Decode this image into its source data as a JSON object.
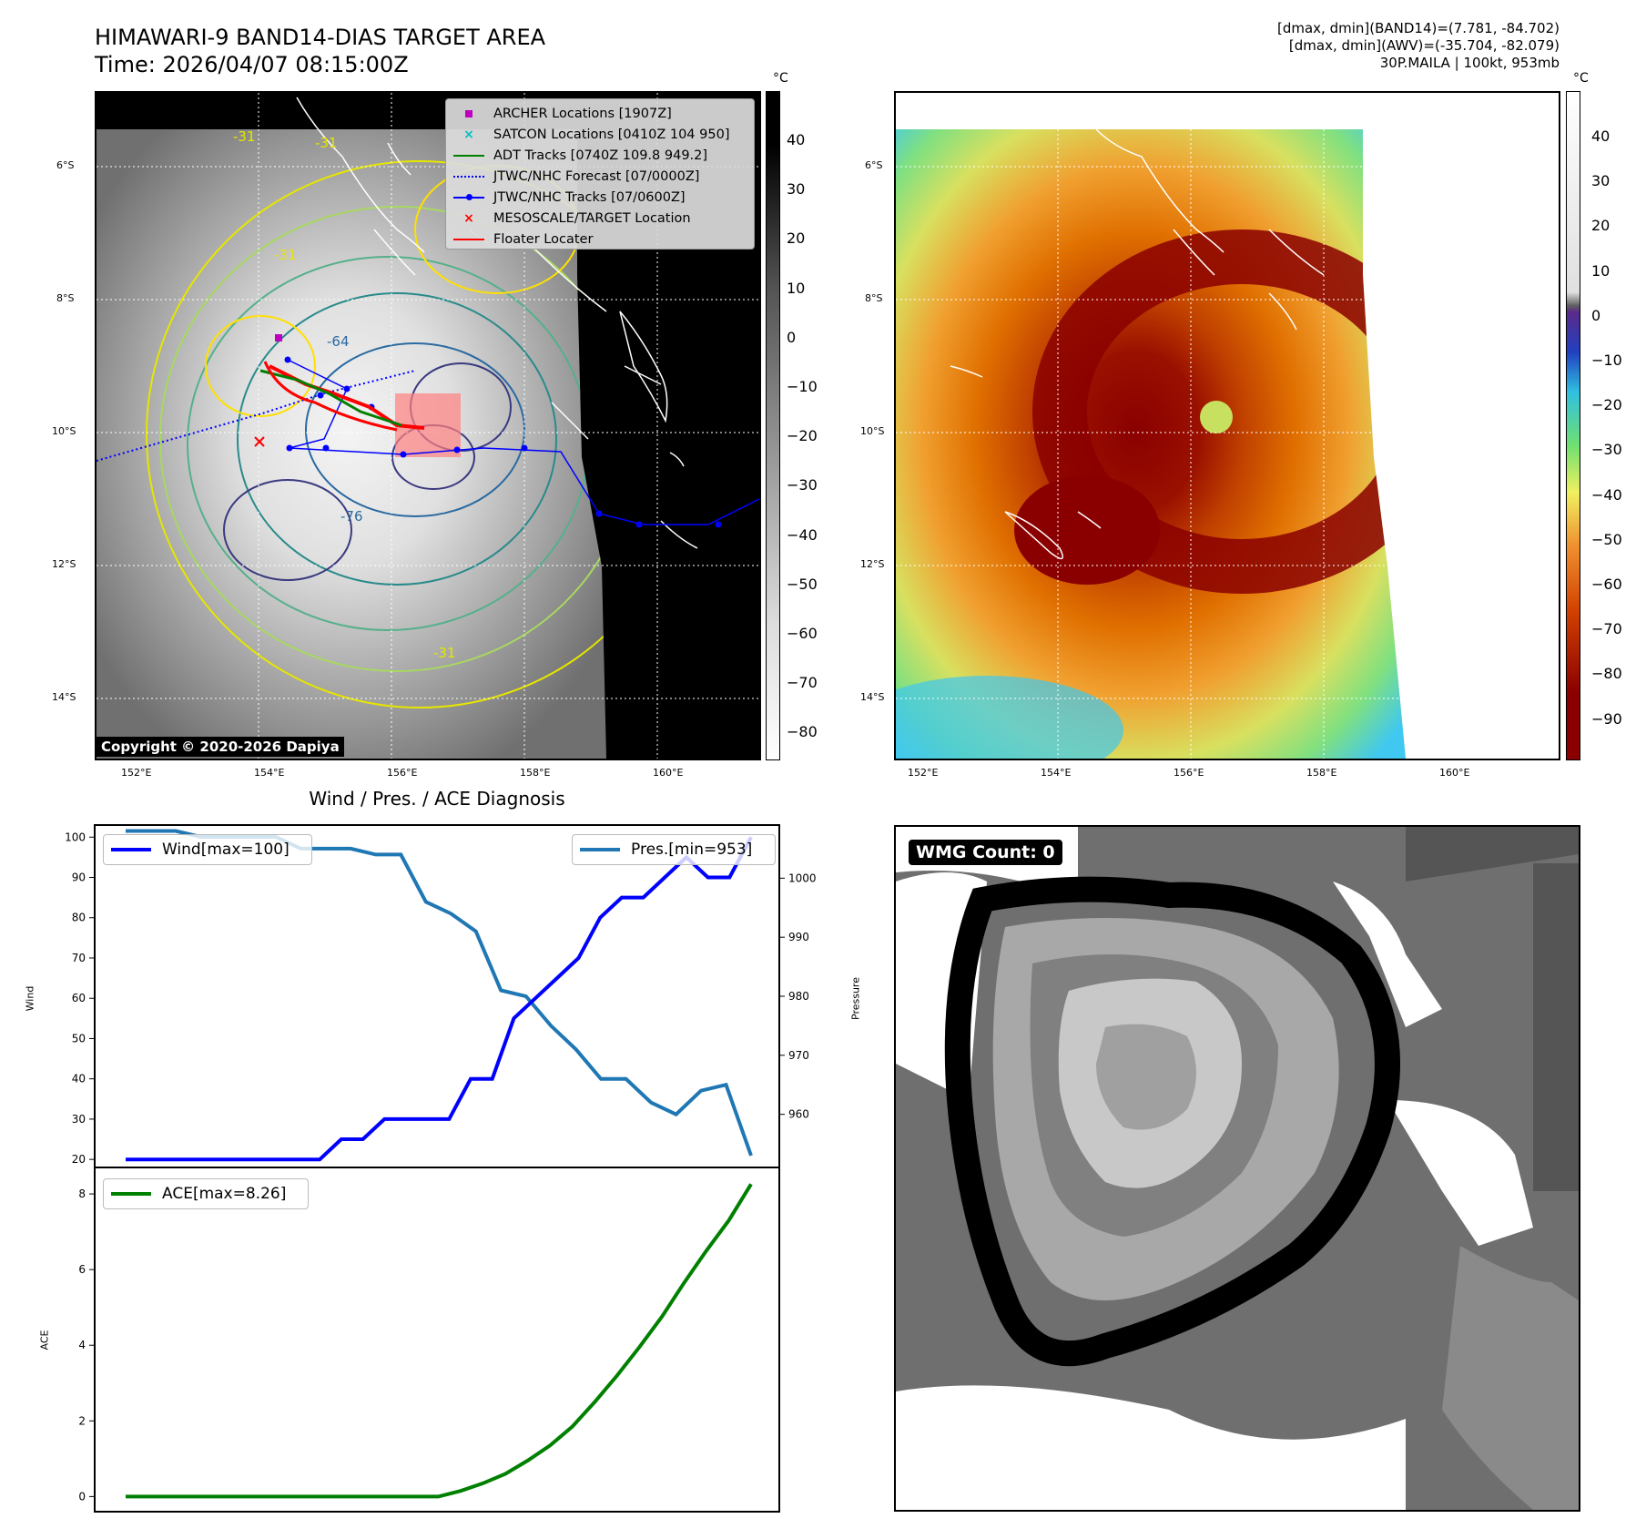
{
  "header": {
    "title_line1": "HIMAWARI-9 BAND14-DIAS TARGET AREA",
    "title_line2": "Time: 2026/04/07 08:15:00Z",
    "stats_line1": "[dmax, dmin](BAND14)=(7.781, -84.702)",
    "stats_line2": "[dmax, dmin](AWV)=(-35.704, -82.079)",
    "stats_line3": "30P.MAILA | 100kt, 953mb"
  },
  "map": {
    "lat_labels": [
      "6°S",
      "8°S",
      "10°S",
      "12°S",
      "14°S"
    ],
    "lon_labels": [
      "152°E",
      "154°E",
      "156°E",
      "158°E",
      "160°E"
    ],
    "contour_labels": [
      "-31",
      "-31",
      "-31",
      "-31",
      "-64",
      "-76",
      "-31"
    ],
    "copyright": "Copyright © 2020-2026 Dapiya"
  },
  "legend": {
    "items": [
      {
        "label": "ARCHER Locations [1907Z]",
        "color": "#c000c0",
        "marker": "square"
      },
      {
        "label": "SATCON Locations [0410Z 104 950]",
        "color": "#00c0c0",
        "marker": "x"
      },
      {
        "label": "ADT Tracks [0740Z 109.8 949.2]",
        "color": "#008000",
        "marker": "line"
      },
      {
        "label": "JTWC/NHC Forecast [07/0000Z]",
        "color": "#0000ff",
        "marker": "dotted"
      },
      {
        "label": "JTWC/NHC Tracks [07/0600Z]",
        "color": "#0000ff",
        "marker": "line-dot"
      },
      {
        "label": "MESOSCALE/TARGET Location",
        "color": "#ff0000",
        "marker": "x"
      },
      {
        "label": "Floater Locater",
        "color": "#ff0000",
        "marker": "line"
      }
    ]
  },
  "colorbar_gray": {
    "unit": "°C",
    "ticks": [
      "40",
      "30",
      "20",
      "10",
      "0",
      "−10",
      "−20",
      "−30",
      "−40",
      "−50",
      "−60",
      "−70",
      "−80"
    ]
  },
  "colorbar_color": {
    "unit": "°C",
    "ticks": [
      "40",
      "30",
      "20",
      "10",
      "0",
      "−10",
      "−20",
      "−30",
      "−40",
      "−50",
      "−60",
      "−70",
      "−80",
      "−90"
    ]
  },
  "wmg": {
    "count_label": "WMG Count: 0"
  },
  "diag": {
    "title": "Wind / Pres. / ACE Diagnosis",
    "wind_label": "Wind",
    "pressure_label": "Pressure",
    "ace_label": "ACE",
    "wind_legend": "Wind[max=100]",
    "pres_legend": "Pres.[min=953]",
    "ace_legend": "ACE[max=8.26]",
    "wind_ticks": [
      "100",
      "90",
      "80",
      "70",
      "60",
      "50",
      "40",
      "30",
      "20"
    ],
    "pres_ticks": [
      "1000",
      "990",
      "980",
      "970",
      "960"
    ],
    "ace_ticks": [
      "8",
      "6",
      "4",
      "2",
      "0"
    ]
  },
  "chart_data": [
    {
      "type": "line",
      "title": "Wind / Pres. / ACE Diagnosis",
      "series": [
        {
          "name": "Wind[max=100]",
          "axis": "Wind",
          "color": "#0000ff",
          "values": [
            20,
            20,
            20,
            20,
            20,
            20,
            20,
            20,
            20,
            20,
            25,
            25,
            30,
            30,
            30,
            30,
            40,
            40,
            55,
            60,
            65,
            70,
            80,
            85,
            85,
            90,
            95,
            90,
            90,
            100
          ]
        },
        {
          "name": "Pres.[min=953]",
          "axis": "Pressure",
          "color": "#1f77b4",
          "values": [
            1008,
            1008,
            1008,
            1007,
            1007,
            1007,
            1007,
            1005,
            1005,
            1005,
            1004,
            1004,
            996,
            994,
            991,
            981,
            980,
            975,
            971,
            966,
            966,
            962,
            960,
            964,
            965,
            953
          ]
        }
      ],
      "wind_ylim": [
        18,
        103
      ],
      "pres_ylim": [
        951,
        1009
      ]
    },
    {
      "type": "line",
      "series": [
        {
          "name": "ACE[max=8.26]",
          "axis": "ACE",
          "color": "#008000",
          "values": [
            0,
            0,
            0,
            0,
            0,
            0,
            0,
            0,
            0,
            0,
            0,
            0,
            0,
            0,
            0,
            0.15,
            0.35,
            0.6,
            0.95,
            1.35,
            1.85,
            2.5,
            3.2,
            3.95,
            4.75,
            5.65,
            6.5,
            7.3,
            8.26
          ]
        }
      ],
      "ylim": [
        -0.4,
        8.7
      ]
    }
  ]
}
